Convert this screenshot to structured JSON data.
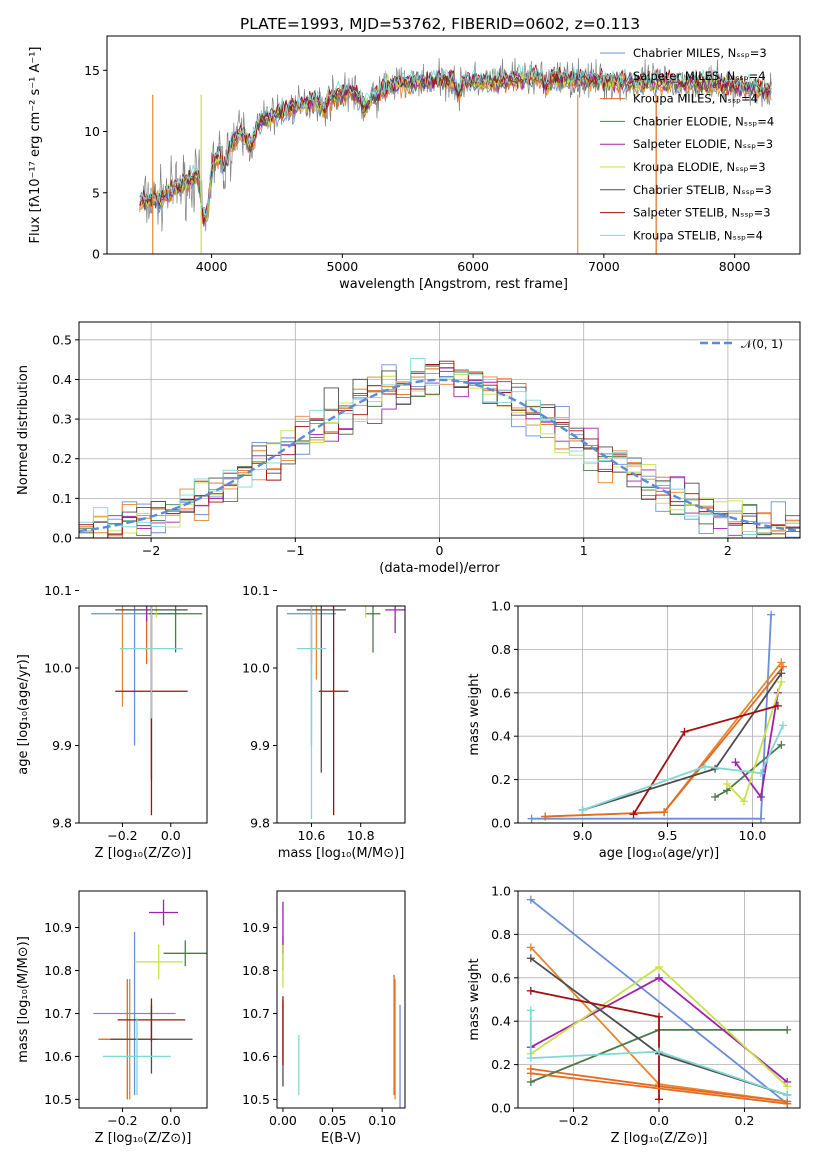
{
  "figure": {
    "title": "PLATE=1993, MJD=53762, FIBERID=0602, z=0.113"
  },
  "model_colors": {
    "Chabrier MILES": "#6a8fd6",
    "Salpeter MILES": "#e8862f",
    "Kroupa MILES": "#e36a1e",
    "Chabrier ELODIE": "#4d7a4d",
    "Salpeter ELODIE": "#a020b0",
    "Kroupa ELODIE": "#c8e04a",
    "Chabrier STELIB": "#4d4d4d",
    "Salpeter STELIB": "#a01010",
    "Kroupa STELIB": "#7fd8d4"
  },
  "chart_data": [
    {
      "type": "line",
      "id": "spectrum",
      "xlabel": "wavelength [Angstrom, rest frame]",
      "ylabel": "Flux [fλ10⁻¹⁷ erg cm⁻² s⁻¹ A⁻¹]",
      "xlim": [
        3200,
        8500
      ],
      "ylim": [
        0,
        17.8
      ],
      "xticks": [
        4000,
        5000,
        6000,
        7000,
        8000
      ],
      "yticks": [
        0,
        5,
        10,
        15
      ],
      "grid": false,
      "legend_position": "top-right",
      "observed_color": "#808080",
      "continuum": [
        [
          3400,
          4.0
        ],
        [
          3600,
          4.5
        ],
        [
          3800,
          5.8
        ],
        [
          3950,
          6.8
        ],
        [
          4100,
          8.6
        ],
        [
          4300,
          10.5
        ],
        [
          4500,
          11.5
        ],
        [
          4700,
          12.2
        ],
        [
          4900,
          12.8
        ],
        [
          5100,
          13.3
        ],
        [
          5300,
          13.6
        ],
        [
          5500,
          14.0
        ],
        [
          5700,
          14.2
        ],
        [
          5900,
          14.3
        ],
        [
          6100,
          14.0
        ],
        [
          6300,
          14.2
        ],
        [
          6500,
          14.5
        ],
        [
          6700,
          14.3
        ],
        [
          6900,
          14.2
        ],
        [
          7200,
          14.0
        ],
        [
          7500,
          14.0
        ],
        [
          7800,
          13.9
        ],
        [
          8000,
          13.7
        ],
        [
          8300,
          13.3
        ]
      ],
      "series": [
        {
          "name": "Chabrier MILES, Nₛₛₚ=3"
        },
        {
          "name": "Salpeter MILES, Nₛₛₚ=4"
        },
        {
          "name": "Kroupa MILES, Nₛₛₚ=4"
        },
        {
          "name": "Chabrier ELODIE, Nₛₛₚ=4"
        },
        {
          "name": "Salpeter ELODIE, Nₛₛₚ=3"
        },
        {
          "name": "Kroupa ELODIE, Nₛₛₚ=3"
        },
        {
          "name": "Chabrier STELIB, Nₛₛₚ=3"
        },
        {
          "name": "Salpeter STELIB, Nₛₛₚ=3"
        },
        {
          "name": "Kroupa STELIB, Nₛₛₚ=4"
        }
      ]
    },
    {
      "type": "bar",
      "id": "residuals",
      "xlabel": "(data-model)/error",
      "ylabel": "Normed distribution",
      "xlim": [
        -2.5,
        2.5
      ],
      "ylim": [
        0,
        0.545
      ],
      "xticks": [
        -2,
        -1,
        0,
        1,
        2
      ],
      "yticks": [
        0.0,
        0.1,
        0.2,
        0.3,
        0.4,
        0.5
      ],
      "grid": true,
      "legend_position": "top-right",
      "bin_width": 0.1,
      "reference": {
        "name": "𝒩(0, 1)",
        "color": "#5b8bd8",
        "mean": 0,
        "sigma": 1
      }
    },
    {
      "type": "scatter",
      "id": "age_vs_Z",
      "xlabel": "Z [log₁₀(Z/Z⊙)]",
      "ylabel": "age  [log₁₀(age/yr)]",
      "xlim": [
        -0.38,
        0.15
      ],
      "ylim": [
        9.8,
        10.08
      ],
      "xticks": [
        -0.2,
        0.0
      ],
      "yticks": [
        9.8,
        9.9,
        10.0,
        10.1
      ],
      "grid": false,
      "points": [
        {
          "model": "Chabrier MILES",
          "x": -0.15,
          "xerr": 0.18,
          "y": 10.07,
          "yerr": 0.17
        },
        {
          "model": "Salpeter MILES",
          "x": -0.2,
          "xerr": 0.05,
          "y": 10.1,
          "yerr": 0.15
        },
        {
          "model": "Kroupa MILES",
          "x": -0.1,
          "xerr": 0.18,
          "y": 10.095,
          "yerr": 0.09
        },
        {
          "model": "Chabrier ELODIE",
          "x": 0.02,
          "xerr": 0.11,
          "y": 10.07,
          "yerr": 0.05
        },
        {
          "model": "Salpeter ELODIE",
          "x": -0.1,
          "xerr": 0.12,
          "y": 10.09,
          "yerr": 0.03
        },
        {
          "model": "Kroupa ELODIE",
          "x": -0.06,
          "xerr": 0.15,
          "y": 10.095,
          "yerr": 0.03
        },
        {
          "model": "Chabrier STELIB",
          "x": -0.08,
          "xerr": 0.15,
          "y": 10.075,
          "yerr": 0.22
        },
        {
          "model": "Salpeter STELIB",
          "x": -0.08,
          "xerr": 0.15,
          "y": 9.97,
          "yerr": 0.16
        },
        {
          "model": "Kroupa STELIB",
          "x": -0.08,
          "xerr": 0.13,
          "y": 10.025,
          "yerr": 0.09
        }
      ]
    },
    {
      "type": "scatter",
      "id": "age_vs_mass",
      "xlabel": "mass [log₁₀(M/M⊙)]",
      "ylabel": "",
      "xlim": [
        10.46,
        10.98
      ],
      "ylim": [
        9.8,
        10.08
      ],
      "xticks": [
        10.6,
        10.8
      ],
      "yticks": [
        9.8,
        9.9,
        10.0,
        10.1
      ],
      "grid": false,
      "points": [
        {
          "model": "Chabrier MILES",
          "x": 10.6,
          "xerr": 0.1,
          "y": 10.07,
          "yerr": 0.17
        },
        {
          "model": "Salpeter MILES",
          "x": 10.62,
          "xerr": 0.09,
          "y": 10.095,
          "yerr": 0.11
        },
        {
          "model": "Kroupa MILES",
          "x": 10.6,
          "xerr": 0.09,
          "y": 10.095,
          "yerr": 0.09
        },
        {
          "model": "Chabrier ELODIE",
          "x": 10.85,
          "xerr": 0.03,
          "y": 10.07,
          "yerr": 0.05
        },
        {
          "model": "Salpeter ELODIE",
          "x": 10.94,
          "xerr": 0.04,
          "y": 10.075,
          "yerr": 0.03
        },
        {
          "model": "Kroupa ELODIE",
          "x": 10.82,
          "xerr": 0.04,
          "y": 10.095,
          "yerr": 0.03
        },
        {
          "model": "Chabrier STELIB",
          "x": 10.64,
          "xerr": 0.1,
          "y": 10.075,
          "yerr": 0.21
        },
        {
          "model": "Salpeter STELIB",
          "x": 10.69,
          "xerr": 0.06,
          "y": 9.97,
          "yerr": 0.16
        },
        {
          "model": "Kroupa STELIB",
          "x": 10.6,
          "xerr": 0.06,
          "y": 10.025,
          "yerr": 0.22
        }
      ]
    },
    {
      "type": "line",
      "id": "weight_vs_age",
      "xlabel": "age  [log₁₀(age/yr)]",
      "ylabel": "mass weight",
      "xlim": [
        8.62,
        10.28
      ],
      "ylim": [
        0,
        1.0
      ],
      "xticks": [
        9.0,
        9.5,
        10.0
      ],
      "yticks": [
        0.0,
        0.2,
        0.4,
        0.6,
        0.8,
        1.0
      ],
      "grid": true,
      "series": [
        {
          "model": "Chabrier MILES",
          "x": [
            8.7,
            10.05,
            10.11
          ],
          "y": [
            0.02,
            0.02,
            0.96
          ]
        },
        {
          "model": "Salpeter MILES",
          "x": [
            8.78,
            9.48,
            10.17
          ],
          "y": [
            0.03,
            0.05,
            0.74
          ]
        },
        {
          "model": "Kroupa MILES",
          "x": [
            8.78,
            9.48,
            10.18
          ],
          "y": [
            0.03,
            0.05,
            0.72
          ]
        },
        {
          "model": "Chabrier ELODIE",
          "x": [
            9.78,
            9.85,
            10.17
          ],
          "y": [
            0.12,
            0.15,
            0.36
          ]
        },
        {
          "model": "Salpeter ELODIE",
          "x": [
            9.9,
            10.05,
            10.15
          ],
          "y": [
            0.28,
            0.12,
            0.6
          ]
        },
        {
          "model": "Kroupa ELODIE",
          "x": [
            9.85,
            9.95,
            10.17
          ],
          "y": [
            0.18,
            0.1,
            0.65
          ]
        },
        {
          "model": "Chabrier STELIB",
          "x": [
            9.0,
            9.78,
            10.17
          ],
          "y": [
            0.06,
            0.25,
            0.69
          ]
        },
        {
          "model": "Salpeter STELIB",
          "x": [
            9.3,
            9.6,
            10.15
          ],
          "y": [
            0.04,
            0.42,
            0.54
          ]
        },
        {
          "model": "Kroupa STELIB",
          "x": [
            9.0,
            9.72,
            10.05,
            10.18
          ],
          "y": [
            0.06,
            0.26,
            0.23,
            0.45
          ]
        }
      ]
    },
    {
      "type": "scatter",
      "id": "mass_vs_Z",
      "xlabel": "Z [log₁₀(Z/Z⊙)]",
      "ylabel": "mass [log₁₀(M/M⊙)]",
      "xlim": [
        -0.38,
        0.15
      ],
      "ylim": [
        10.48,
        10.985
      ],
      "xticks": [
        -0.2,
        0.0
      ],
      "yticks": [
        10.5,
        10.6,
        10.7,
        10.8,
        10.9
      ],
      "grid": false,
      "points": [
        {
          "model": "Chabrier MILES",
          "x": -0.15,
          "xerr": 0.17,
          "y": 10.7,
          "yerr": 0.19
        },
        {
          "model": "Salpeter MILES",
          "x": -0.17,
          "xerr": 0.12,
          "y": 10.64,
          "yerr": 0.14
        },
        {
          "model": "Kroupa MILES",
          "x": -0.18,
          "xerr": 0.12,
          "y": 10.64,
          "yerr": 0.14
        },
        {
          "model": "Chabrier ELODIE",
          "x": 0.06,
          "xerr": 0.09,
          "y": 10.84,
          "yerr": 0.03
        },
        {
          "model": "Salpeter ELODIE",
          "x": -0.03,
          "xerr": 0.06,
          "y": 10.935,
          "yerr": 0.03
        },
        {
          "model": "Kroupa ELODIE",
          "x": -0.05,
          "xerr": 0.1,
          "y": 10.82,
          "yerr": 0.04
        },
        {
          "model": "Chabrier STELIB",
          "x": -0.08,
          "xerr": 0.17,
          "y": 10.64,
          "yerr": 0.08
        },
        {
          "model": "Salpeter STELIB",
          "x": -0.08,
          "xerr": 0.14,
          "y": 10.685,
          "yerr": 0.05
        },
        {
          "model": "Kroupa STELIB",
          "x": -0.14,
          "xerr": 0.14,
          "y": 10.6,
          "yerr": 0.09
        }
      ]
    },
    {
      "type": "scatter",
      "id": "mass_vs_ebv",
      "xlabel": "E(B-V)",
      "ylabel": "",
      "xlim": [
        -0.006,
        0.123
      ],
      "ylim": [
        10.48,
        10.985
      ],
      "xticks": [
        0.0,
        0.05,
        0.1
      ],
      "yticks": [
        10.5,
        10.6,
        10.7,
        10.8,
        10.9
      ],
      "grid": false,
      "points": [
        {
          "model": "Chabrier MILES",
          "x": 0.118,
          "y": 10.6,
          "yerr": 0.12
        },
        {
          "model": "Salpeter MILES",
          "x": 0.113,
          "y": 10.64,
          "yerr": 0.14
        },
        {
          "model": "Kroupa MILES",
          "x": 0.112,
          "y": 10.65,
          "yerr": 0.14
        },
        {
          "model": "Chabrier ELODIE",
          "x": 0.0,
          "y": 10.84,
          "yerr": 0.04
        },
        {
          "model": "Salpeter ELODIE",
          "x": 0.0,
          "y": 10.9,
          "yerr": 0.06
        },
        {
          "model": "Kroupa ELODIE",
          "x": 0.0,
          "y": 10.81,
          "yerr": 0.05
        },
        {
          "model": "Chabrier STELIB",
          "x": 0.0,
          "y": 10.63,
          "yerr": 0.1
        },
        {
          "model": "Salpeter STELIB",
          "x": 0.0,
          "y": 10.66,
          "yerr": 0.08
        },
        {
          "model": "Kroupa STELIB",
          "x": 0.016,
          "y": 10.58,
          "yerr": 0.07
        }
      ]
    },
    {
      "type": "line",
      "id": "weight_vs_Z",
      "xlabel": "Z [log₁₀(Z/Z⊙)]",
      "ylabel": "mass weight",
      "xlim": [
        -0.33,
        0.33
      ],
      "ylim": [
        0,
        1.0
      ],
      "xticks": [
        -0.2,
        0.0,
        0.2
      ],
      "yticks": [
        0.0,
        0.2,
        0.4,
        0.6,
        0.8,
        1.0
      ],
      "grid": true,
      "series": [
        {
          "model": "Chabrier MILES",
          "x": [
            -0.3,
            0.3
          ],
          "y": [
            0.96,
            0.02
          ]
        },
        {
          "model": "Salpeter MILES",
          "x": [
            -0.3,
            0.0,
            0.3
          ],
          "y": [
            0.74,
            0.11,
            0.03
          ]
        },
        {
          "model": "Kroupa MILES",
          "x": [
            -0.3,
            0.0,
            0.3
          ],
          "y": [
            0.18,
            0.1,
            0.03
          ]
        },
        {
          "model": "Chabrier ELODIE",
          "x": [
            -0.3,
            0.0,
            0.3
          ],
          "y": [
            0.12,
            0.36,
            0.36
          ]
        },
        {
          "model": "Salpeter ELODIE",
          "x": [
            -0.3,
            0.0,
            0.3
          ],
          "y": [
            0.28,
            0.6,
            0.12
          ]
        },
        {
          "model": "Kroupa ELODIE",
          "x": [
            -0.3,
            0.0,
            0.3
          ],
          "y": [
            0.25,
            0.65,
            0.1
          ]
        },
        {
          "model": "Chabrier STELIB",
          "x": [
            -0.3,
            0.0,
            0.3
          ],
          "y": [
            0.69,
            0.25,
            0.06
          ]
        },
        {
          "model": "Salpeter STELIB",
          "x": [
            -0.3,
            0.0,
            0.0
          ],
          "y": [
            0.54,
            0.42,
            0.04
          ]
        },
        {
          "model": "Kroupa STELIB",
          "x": [
            -0.3,
            -0.3,
            0.0,
            0.3
          ],
          "y": [
            0.45,
            0.23,
            0.26,
            0.06
          ]
        },
        {
          "model": "Kroupa MILES",
          "x": [
            -0.3,
            0.3
          ],
          "y": [
            0.16,
            0.02
          ]
        }
      ]
    }
  ]
}
